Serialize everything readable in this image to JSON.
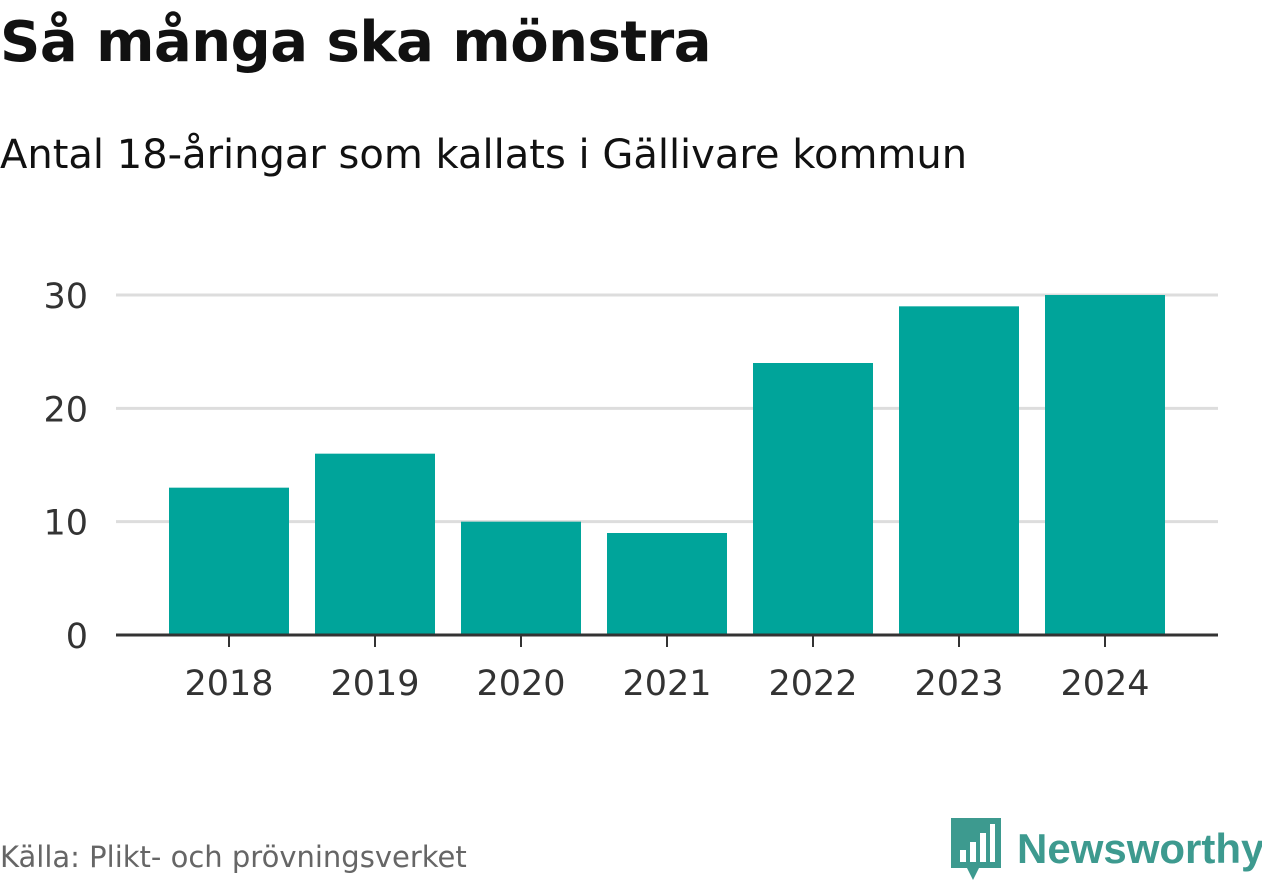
{
  "title": "Så många ska mönstra",
  "subtitle": "Antal 18-åringar som kallats i Gällivare kommun",
  "source": "Källa: Plikt- och prövningsverket",
  "brand": {
    "name": "Newsworthy",
    "icon": "bar-chart-logo-icon",
    "color": "#3d9a8f"
  },
  "colors": {
    "bar": "#00a49a",
    "grid": "#dddddd",
    "axis": "#333333",
    "tick_text": "#333333"
  },
  "chart_data": {
    "type": "bar",
    "title": "Så många ska mönstra",
    "subtitle": "Antal 18-åringar som kallats i Gällivare kommun",
    "categories": [
      "2018",
      "2019",
      "2020",
      "2021",
      "2022",
      "2023",
      "2024"
    ],
    "values": [
      13,
      16,
      10,
      9,
      24,
      29,
      30
    ],
    "ylim": [
      0,
      30
    ],
    "yticks": [
      0,
      10,
      20,
      30
    ],
    "grid": true,
    "legend": "none",
    "xlabel": "",
    "ylabel": ""
  }
}
